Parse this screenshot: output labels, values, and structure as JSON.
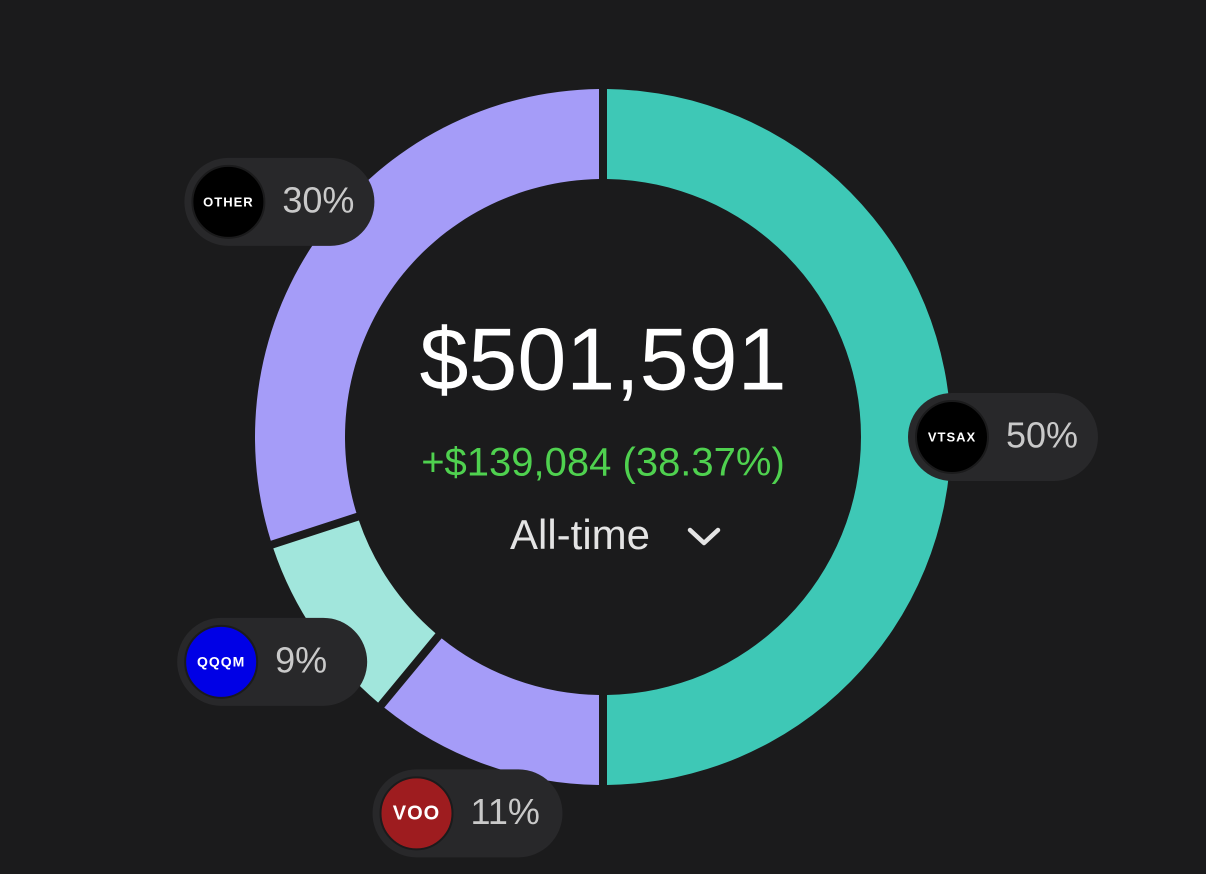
{
  "chart_data": {
    "type": "pie",
    "total": "$501,591",
    "change": "+$139,084 (38.37%)",
    "period": "All-time",
    "categories": [
      "VTSAX",
      "VOO",
      "QQQM",
      "OTHER"
    ],
    "values": [
      50,
      11,
      9,
      30
    ],
    "value_labels": [
      "50%",
      "11%",
      "9%",
      "30%"
    ],
    "colors": [
      "#3ec8b6",
      "#a59cf8",
      "#a1e6dc",
      "#a59cf8"
    ],
    "icon_colors": [
      "#000000",
      "#9e1c1f",
      "#0000e6",
      "#000000"
    ]
  }
}
